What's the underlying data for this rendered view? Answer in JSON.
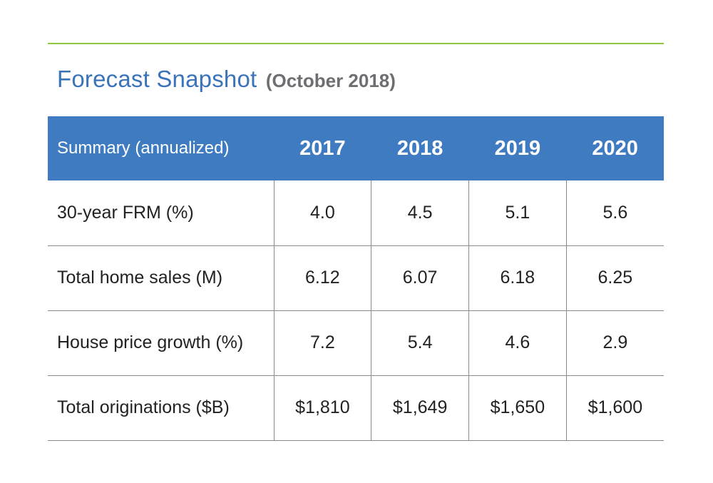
{
  "title": "Forecast Snapshot",
  "subtitle": "(October 2018)",
  "colors": {
    "accent_rule": "#8dc63f",
    "title": "#3a73b9",
    "header_bg": "#3f7bc1",
    "subtitle": "#6d6e71"
  },
  "chart_data": {
    "type": "table",
    "title": "Forecast Snapshot",
    "subtitle": "(October 2018)",
    "header_label": "Summary (annualized)",
    "columns": [
      "2017",
      "2018",
      "2019",
      "2020"
    ],
    "rows": [
      {
        "label": "30-year FRM (%)",
        "values": [
          "4.0",
          "4.5",
          "5.1",
          "5.6"
        ]
      },
      {
        "label": "Total home sales (M)",
        "values": [
          "6.12",
          "6.07",
          "6.18",
          "6.25"
        ]
      },
      {
        "label": "House price growth (%)",
        "values": [
          "7.2",
          "5.4",
          "4.6",
          "2.9"
        ]
      },
      {
        "label": "Total originations ($B)",
        "values": [
          "$1,810",
          "$1,649",
          "$1,650",
          "$1,600"
        ]
      }
    ]
  }
}
